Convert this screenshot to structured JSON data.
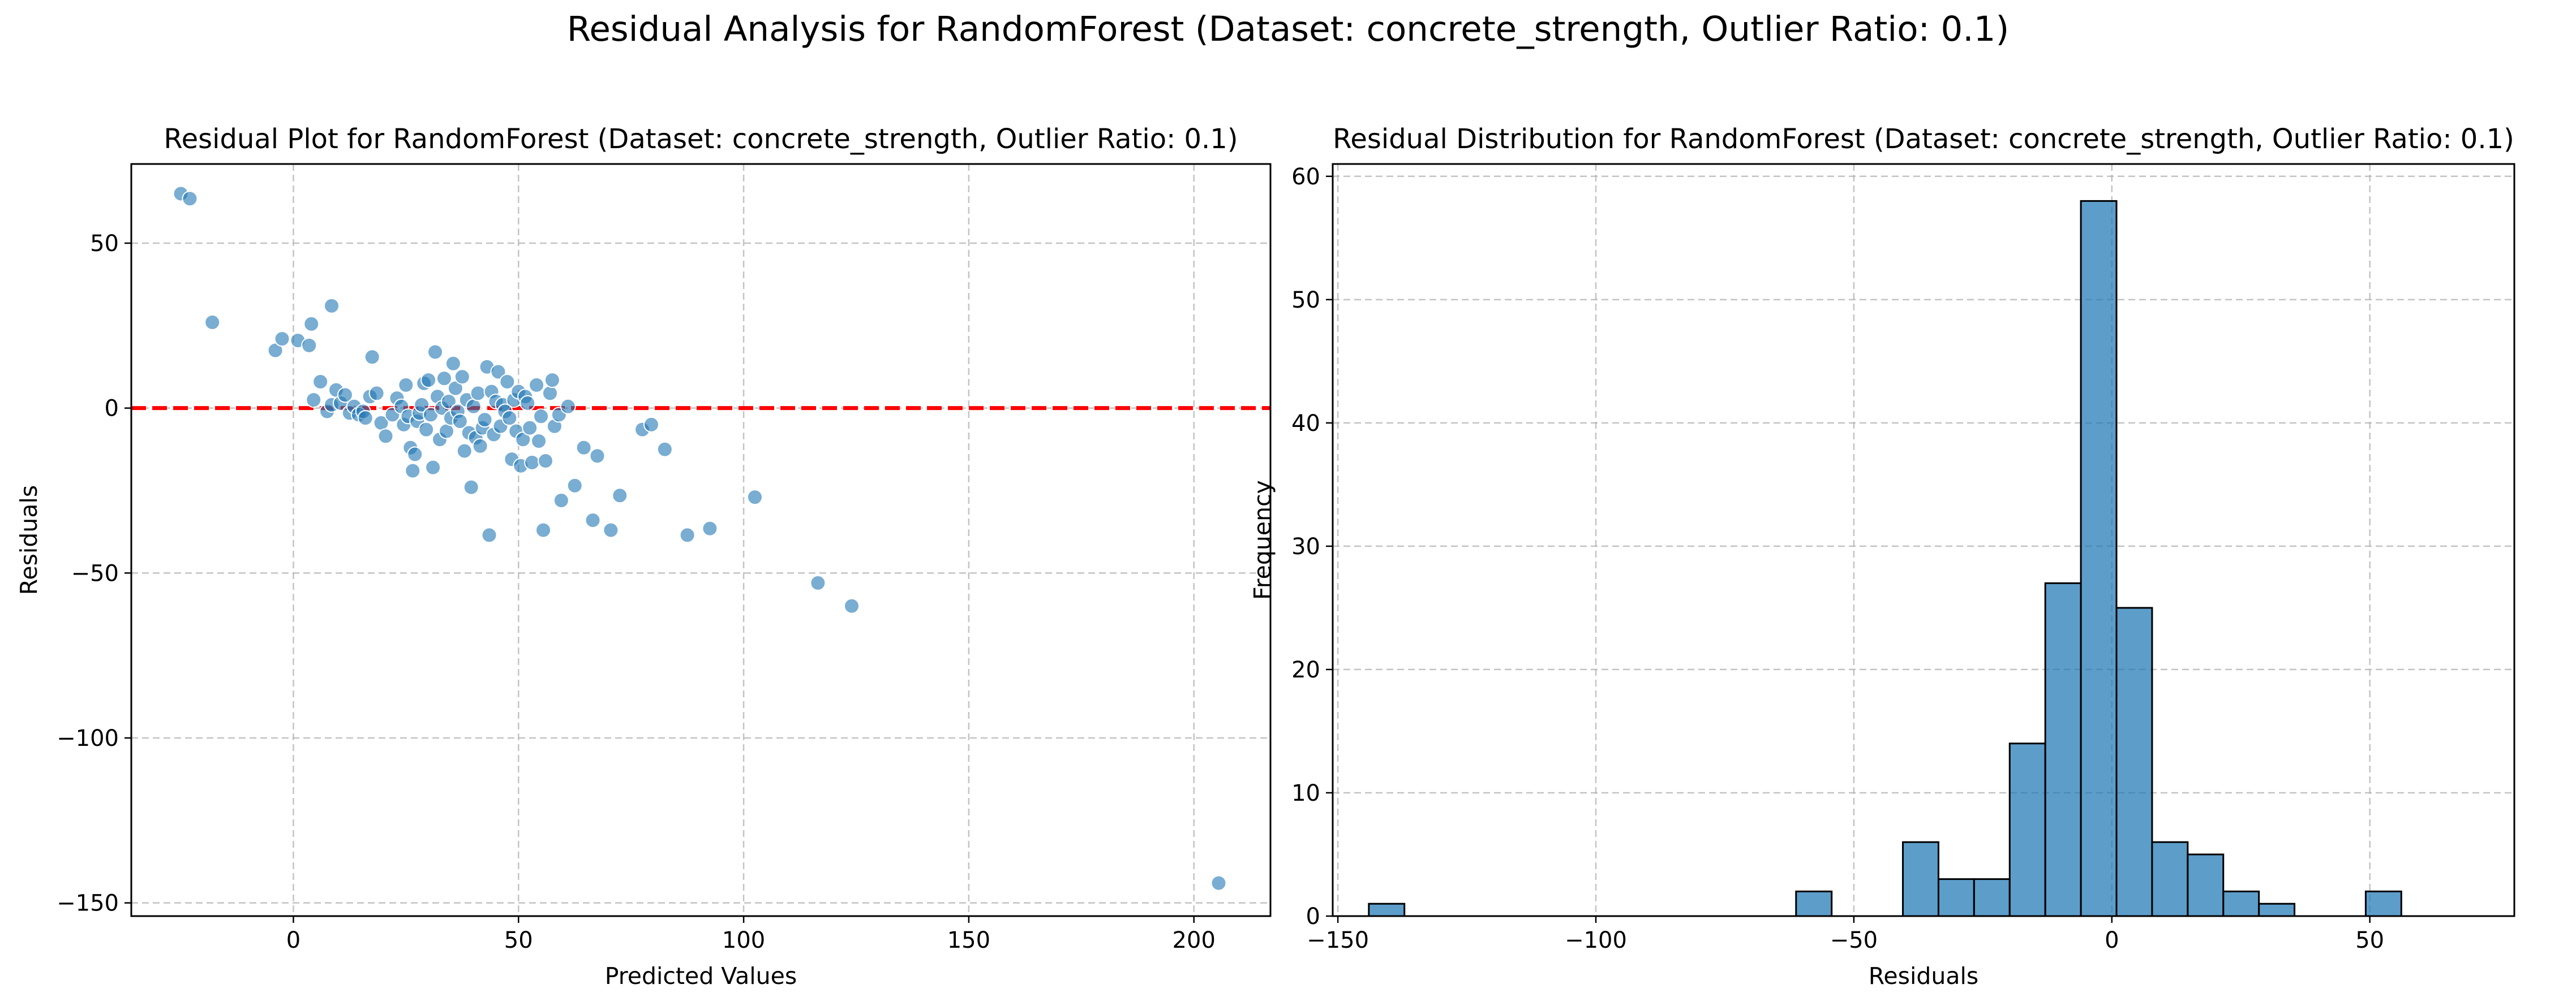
{
  "figure": {
    "suptitle": "Residual Analysis for RandomForest (Dataset: concrete_strength, Outlier Ratio: 0.1)"
  },
  "colors": {
    "point": "#1f77b4",
    "bar": "#1f77b4",
    "zero_line": "#ff0000",
    "grid": "#b0b0b0"
  },
  "chart_data": [
    {
      "type": "scatter",
      "title": "Residual Plot for RandomForest (Dataset: concrete_strength, Outlier Ratio: 0.1)",
      "xlabel": "Predicted Values",
      "ylabel": "Residuals",
      "xlim": [
        -36,
        217
      ],
      "ylim": [
        -154,
        74
      ],
      "xticks": [
        0,
        50,
        100,
        150,
        200
      ],
      "xtick_labels": [
        "0",
        "50",
        "100",
        "150",
        "200"
      ],
      "yticks": [
        -150,
        -100,
        -50,
        0,
        50
      ],
      "ytick_labels": [
        "−150",
        "−100",
        "−50",
        "0",
        "50"
      ],
      "grid": true,
      "reference_line": {
        "y": 0,
        "style": "dashed",
        "color": "red"
      },
      "points": [
        [
          -25,
          65
        ],
        [
          -23,
          63.5
        ],
        [
          -18,
          26
        ],
        [
          -4,
          17.5
        ],
        [
          -2.5,
          21
        ],
        [
          1,
          20.5
        ],
        [
          3.5,
          19
        ],
        [
          4,
          25.5
        ],
        [
          4.5,
          2.5
        ],
        [
          8.5,
          31
        ],
        [
          6,
          8
        ],
        [
          7.5,
          -1
        ],
        [
          8.5,
          1
        ],
        [
          9.5,
          5.5
        ],
        [
          10.5,
          1.5
        ],
        [
          11.5,
          4
        ],
        [
          12.5,
          -1.5
        ],
        [
          13.5,
          0.5
        ],
        [
          14.5,
          -2
        ],
        [
          15.5,
          -1
        ],
        [
          16,
          -3
        ],
        [
          17,
          3.5
        ],
        [
          17.5,
          15.5
        ],
        [
          18.5,
          4.5
        ],
        [
          19.5,
          -4.5
        ],
        [
          20.5,
          -8.5
        ],
        [
          22,
          -2
        ],
        [
          23,
          3
        ],
        [
          24,
          0.5
        ],
        [
          24.5,
          -5
        ],
        [
          25,
          7
        ],
        [
          25.5,
          -2.5
        ],
        [
          26,
          -12
        ],
        [
          26.5,
          -19
        ],
        [
          27,
          -14
        ],
        [
          27.5,
          -4
        ],
        [
          28,
          -1.5
        ],
        [
          28.5,
          1
        ],
        [
          29,
          7.5
        ],
        [
          29.5,
          -6.5
        ],
        [
          30,
          8.5
        ],
        [
          30.5,
          -2
        ],
        [
          31,
          -18
        ],
        [
          31.5,
          17
        ],
        [
          32,
          3.5
        ],
        [
          32.5,
          -9.5
        ],
        [
          33,
          0
        ],
        [
          33.5,
          9
        ],
        [
          34,
          -7
        ],
        [
          34.5,
          2
        ],
        [
          35,
          -3
        ],
        [
          35.5,
          13.5
        ],
        [
          36,
          6
        ],
        [
          36.5,
          -1
        ],
        [
          37,
          -4
        ],
        [
          37.5,
          9.5
        ],
        [
          38,
          -13
        ],
        [
          38.5,
          2.5
        ],
        [
          39,
          -7.5
        ],
        [
          39.5,
          -24
        ],
        [
          40,
          0.5
        ],
        [
          40.5,
          -9
        ],
        [
          41,
          4.5
        ],
        [
          41.5,
          -11.5
        ],
        [
          42,
          -6
        ],
        [
          42.5,
          -3.5
        ],
        [
          43,
          12.5
        ],
        [
          43.5,
          -38.5
        ],
        [
          44,
          5
        ],
        [
          44.5,
          -8
        ],
        [
          45,
          2
        ],
        [
          45.5,
          11
        ],
        [
          46,
          -5.5
        ],
        [
          46.5,
          1
        ],
        [
          47,
          -1
        ],
        [
          47.5,
          8
        ],
        [
          48,
          -3
        ],
        [
          48.5,
          -15.5
        ],
        [
          49,
          2.5
        ],
        [
          49.5,
          -7
        ],
        [
          50,
          5
        ],
        [
          50.5,
          -17.5
        ],
        [
          51,
          -9.5
        ],
        [
          51.5,
          3.5
        ],
        [
          52,
          1.5
        ],
        [
          52.5,
          -6
        ],
        [
          53,
          -16.5
        ],
        [
          54,
          7
        ],
        [
          54.5,
          -10
        ],
        [
          55,
          -2.5
        ],
        [
          55.5,
          -37
        ],
        [
          56,
          -16
        ],
        [
          57,
          4.5
        ],
        [
          57.5,
          8.5
        ],
        [
          58,
          -5.5
        ],
        [
          59,
          -2
        ],
        [
          59.5,
          -28
        ],
        [
          61,
          0.5
        ],
        [
          62.5,
          -23.5
        ],
        [
          64.5,
          -12
        ],
        [
          66.5,
          -34
        ],
        [
          67.5,
          -14.5
        ],
        [
          70.5,
          -37
        ],
        [
          72.5,
          -26.5
        ],
        [
          77.5,
          -6.5
        ],
        [
          79.5,
          -5
        ],
        [
          82.5,
          -12.5
        ],
        [
          87.5,
          -38.5
        ],
        [
          92.5,
          -36.5
        ],
        [
          102.5,
          -27
        ],
        [
          116.5,
          -53
        ],
        [
          124,
          -60
        ],
        [
          205.5,
          -144
        ]
      ]
    },
    {
      "type": "bar",
      "subtype": "histogram",
      "title": "Residual Distribution for RandomForest (Dataset: concrete_strength, Outlier Ratio: 0.1)",
      "xlabel": "Residuals",
      "ylabel": "Frequency",
      "xlim": [
        -151,
        78
      ],
      "ylim": [
        0,
        61
      ],
      "xticks": [
        -150,
        -100,
        -50,
        0,
        50
      ],
      "xtick_labels": [
        "−150",
        "−100",
        "−50",
        "0",
        "50"
      ],
      "yticks": [
        0,
        10,
        20,
        30,
        40,
        50,
        60
      ],
      "ytick_labels": [
        "0",
        "10",
        "20",
        "30",
        "40",
        "50",
        "60"
      ],
      "grid": true,
      "bin_start": -144,
      "bin_width": 6.9,
      "values": [
        1,
        0,
        0,
        0,
        0,
        0,
        0,
        0,
        0,
        0,
        0,
        0,
        2,
        0,
        0,
        6,
        3,
        3,
        14,
        27,
        58,
        25,
        6,
        5,
        2,
        1,
        0,
        0,
        2
      ]
    }
  ]
}
